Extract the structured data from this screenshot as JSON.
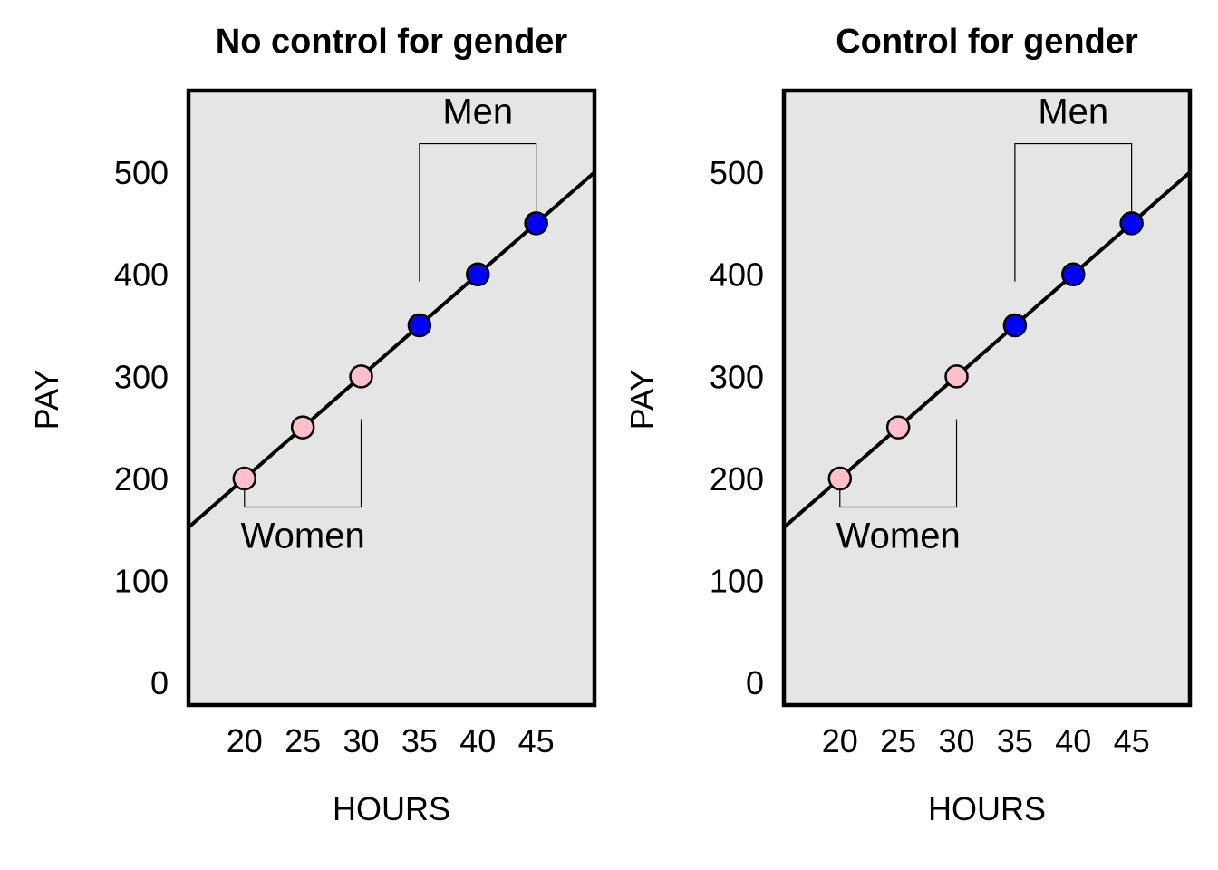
{
  "chart_data": [
    {
      "type": "scatter",
      "title": "No control for gender",
      "xlabel": "HOURS",
      "ylabel": "PAY",
      "xlim": [
        15.2,
        50
      ],
      "ylim": [
        -22,
        580
      ],
      "x_ticks": [
        "20",
        "25",
        "30",
        "35",
        "40",
        "45"
      ],
      "y_ticks": [
        "0",
        "100",
        "200",
        "300",
        "400",
        "500"
      ],
      "grid": false,
      "legend": "none",
      "series": [
        {
          "name": "Women",
          "color": "#ffc0cb",
          "x": [
            20,
            25,
            30
          ],
          "y": [
            200,
            250,
            300
          ]
        },
        {
          "name": "Men",
          "color": "#0000ff",
          "x": [
            35,
            40,
            45
          ],
          "y": [
            350,
            400,
            450
          ]
        }
      ],
      "fit_line": {
        "slope": 10,
        "intercept": 0
      },
      "annotations": [
        {
          "text": "Women",
          "group": "Women"
        },
        {
          "text": "Men",
          "group": "Men"
        }
      ]
    },
    {
      "type": "scatter",
      "title": "Control for gender",
      "xlabel": "HOURS",
      "ylabel": "PAY",
      "xlim": [
        15.2,
        50
      ],
      "ylim": [
        -22,
        580
      ],
      "x_ticks": [
        "20",
        "25",
        "30",
        "35",
        "40",
        "45"
      ],
      "y_ticks": [
        "0",
        "100",
        "200",
        "300",
        "400",
        "500"
      ],
      "grid": false,
      "legend": "none",
      "series": [
        {
          "name": "Women",
          "color": "#ffc0cb",
          "x": [
            20,
            25,
            30
          ],
          "y": [
            200,
            250,
            300
          ]
        },
        {
          "name": "Men",
          "color": "#0000ff",
          "x": [
            35,
            40,
            45
          ],
          "y": [
            350,
            400,
            450
          ]
        }
      ],
      "fit_line": {
        "slope": 10,
        "intercept": 0
      },
      "annotations": [
        {
          "text": "Women",
          "group": "Women"
        },
        {
          "text": "Men",
          "group": "Men"
        }
      ]
    }
  ],
  "style": {
    "panel_bg": "#e5e5e5",
    "frame_color": "#000000",
    "line_color": "#000000"
  }
}
